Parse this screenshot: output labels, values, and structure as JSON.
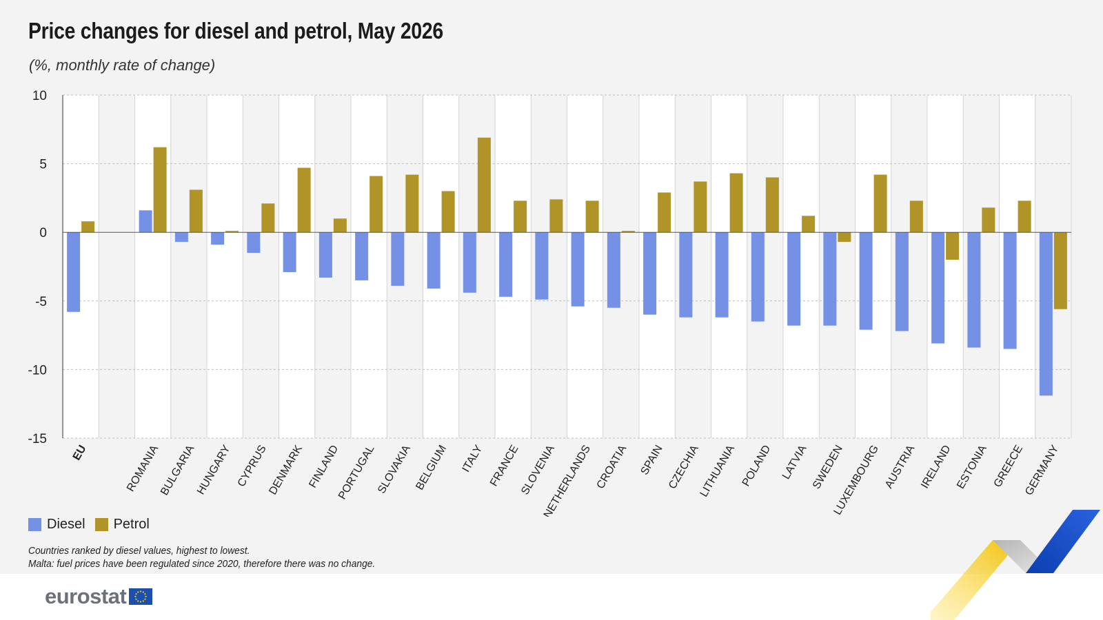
{
  "header": {
    "title": "Price changes for diesel and petrol, May 2026",
    "subtitle": "(%, monthly rate of change)"
  },
  "legend": {
    "items": [
      {
        "label": "Diesel",
        "color": "#7491e6"
      },
      {
        "label": "Petrol",
        "color": "#b09428"
      }
    ]
  },
  "notes": {
    "line1": "Countries ranked by diesel values, highest to lowest.",
    "line2": "Malta: fuel prices have been regulated since 2020, therefore there was no change."
  },
  "footer": {
    "logo_text": "eurostat"
  },
  "chart_data": {
    "type": "bar",
    "orientation": "vertical",
    "categories": [
      "EU",
      "",
      "ROMANIA",
      "BULGARIA",
      "HUNGARY",
      "CYPRUS",
      "DENMARK",
      "FINLAND",
      "PORTUGAL",
      "SLOVAKIA",
      "BELGIUM",
      "ITALY",
      "FRANCE",
      "SLOVENIA",
      "NETHERLANDS",
      "CROATIA",
      "SPAIN",
      "CZECHIA",
      "LITHUANIA",
      "POLAND",
      "LATVIA",
      "SWEDEN",
      "LUXEMBOURG",
      "AUSTRIA",
      "IRELAND",
      "ESTONIA",
      "GREECE",
      "GERMANY"
    ],
    "series": [
      {
        "name": "Diesel",
        "color": "#7491e6",
        "values": [
          -5.8,
          null,
          1.6,
          -0.7,
          -0.9,
          -1.5,
          -2.9,
          -3.3,
          -3.5,
          -3.9,
          -4.1,
          -4.4,
          -4.7,
          -4.9,
          -5.4,
          -5.5,
          -6.0,
          -6.2,
          -6.2,
          -6.5,
          -6.8,
          -6.8,
          -7.1,
          -7.2,
          -8.1,
          -8.4,
          -8.5,
          -11.9
        ]
      },
      {
        "name": "Petrol",
        "color": "#b09428",
        "values": [
          0.8,
          null,
          6.2,
          3.1,
          0.1,
          2.1,
          4.7,
          1.0,
          4.1,
          4.2,
          3.0,
          6.9,
          2.3,
          2.4,
          2.3,
          0.1,
          2.9,
          3.7,
          4.3,
          4.0,
          1.2,
          -0.7,
          4.2,
          2.3,
          -2.0,
          1.8,
          2.3,
          -5.6
        ]
      }
    ],
    "ylim": [
      -15,
      10
    ],
    "yticks": [
      10,
      5,
      0,
      -5,
      -10,
      -15
    ],
    "grid": true,
    "legend_position": "bottom-left",
    "bold_categories": [
      "EU"
    ]
  }
}
